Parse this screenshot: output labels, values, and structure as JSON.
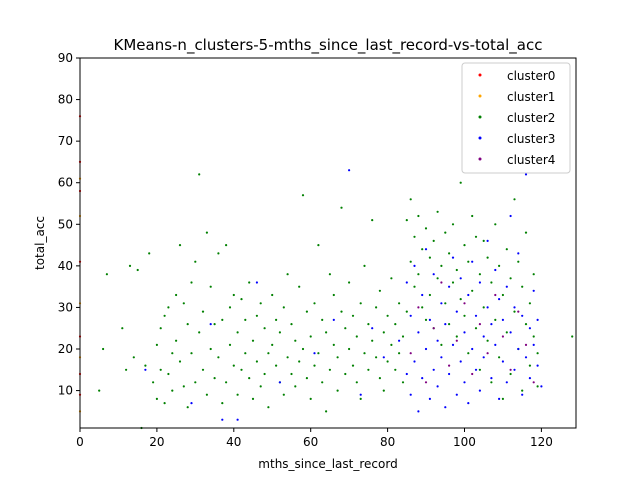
{
  "chart_data": {
    "type": "scatter",
    "title": "KMeans-n_clusters-5-mths_since_last_record-vs-total_acc",
    "xlabel": "mths_since_last_record",
    "ylabel": "total_acc",
    "xlim": [
      0,
      129
    ],
    "ylim": [
      1,
      90
    ],
    "xticks": [
      0,
      20,
      40,
      60,
      80,
      100,
      120
    ],
    "yticks": [
      10,
      20,
      30,
      40,
      50,
      60,
      70,
      80,
      90
    ],
    "grid": false,
    "legend_position": "top-right",
    "series": [
      {
        "name": "cluster0",
        "color": "#ff0000",
        "points": [
          [
            0,
            9
          ],
          [
            0,
            14
          ],
          [
            0,
            23
          ],
          [
            0,
            41
          ],
          [
            0,
            58
          ],
          [
            0,
            65
          ],
          [
            0,
            76
          ]
        ]
      },
      {
        "name": "cluster1",
        "color": "#ffa500",
        "points": [
          [
            0,
            5
          ],
          [
            0,
            18
          ],
          [
            0,
            31
          ],
          [
            0,
            52
          ],
          [
            0,
            61
          ]
        ]
      },
      {
        "name": "cluster2",
        "color": "#008000",
        "points": [
          [
            5,
            10
          ],
          [
            6,
            20
          ],
          [
            7,
            38
          ],
          [
            11,
            25
          ],
          [
            12,
            15
          ],
          [
            13,
            40
          ],
          [
            14,
            18
          ],
          [
            15,
            39
          ],
          [
            16,
            1
          ],
          [
            17,
            16
          ],
          [
            18,
            43
          ],
          [
            19,
            12
          ],
          [
            20,
            21
          ],
          [
            20,
            8
          ],
          [
            21,
            25
          ],
          [
            21,
            15
          ],
          [
            22,
            28
          ],
          [
            22,
            7
          ],
          [
            23,
            30
          ],
          [
            23,
            14
          ],
          [
            24,
            19
          ],
          [
            24,
            10
          ],
          [
            25,
            33
          ],
          [
            25,
            22
          ],
          [
            26,
            45
          ],
          [
            26,
            17
          ],
          [
            27,
            11
          ],
          [
            27,
            31
          ],
          [
            28,
            26
          ],
          [
            28,
            6
          ],
          [
            29,
            19
          ],
          [
            29,
            36
          ],
          [
            30,
            41
          ],
          [
            30,
            12
          ],
          [
            31,
            62
          ],
          [
            31,
            24
          ],
          [
            32,
            29
          ],
          [
            32,
            15
          ],
          [
            33,
            48
          ],
          [
            33,
            9
          ],
          [
            34,
            20
          ],
          [
            34,
            35
          ],
          [
            35,
            26
          ],
          [
            35,
            13
          ],
          [
            36,
            18
          ],
          [
            36,
            43
          ],
          [
            37,
            27
          ],
          [
            37,
            7
          ],
          [
            38,
            12
          ],
          [
            38,
            45
          ],
          [
            39,
            21
          ],
          [
            39,
            30
          ],
          [
            40,
            16
          ],
          [
            40,
            33
          ],
          [
            41,
            24
          ],
          [
            41,
            9
          ],
          [
            42,
            32
          ],
          [
            42,
            15
          ],
          [
            43,
            19
          ],
          [
            43,
            27
          ],
          [
            44,
            13
          ],
          [
            44,
            36
          ],
          [
            45,
            22
          ],
          [
            45,
            8
          ],
          [
            46,
            28
          ],
          [
            46,
            17
          ],
          [
            47,
            11
          ],
          [
            47,
            31
          ],
          [
            48,
            25
          ],
          [
            48,
            14
          ],
          [
            49,
            19
          ],
          [
            49,
            6
          ],
          [
            50,
            21
          ],
          [
            50,
            33
          ],
          [
            51,
            16
          ],
          [
            51,
            27
          ],
          [
            52,
            12
          ],
          [
            52,
            24
          ],
          [
            53,
            30
          ],
          [
            53,
            9
          ],
          [
            54,
            18
          ],
          [
            54,
            38
          ],
          [
            55,
            14
          ],
          [
            55,
            26
          ],
          [
            56,
            22
          ],
          [
            56,
            11
          ],
          [
            57,
            35
          ],
          [
            57,
            17
          ],
          [
            58,
            57
          ],
          [
            58,
            20
          ],
          [
            59,
            13
          ],
          [
            59,
            29
          ],
          [
            60,
            23
          ],
          [
            60,
            8
          ],
          [
            61,
            31
          ],
          [
            61,
            16
          ],
          [
            62,
            45
          ],
          [
            62,
            19
          ],
          [
            63,
            12
          ],
          [
            63,
            27
          ],
          [
            64,
            24
          ],
          [
            64,
            5
          ],
          [
            65,
            38
          ],
          [
            65,
            15
          ],
          [
            66,
            21
          ],
          [
            66,
            33
          ],
          [
            67,
            18
          ],
          [
            67,
            10
          ],
          [
            68,
            29
          ],
          [
            68,
            54
          ],
          [
            69,
            14
          ],
          [
            69,
            25
          ],
          [
            70,
            20
          ],
          [
            70,
            36
          ],
          [
            71,
            16
          ],
          [
            71,
            28
          ],
          [
            72,
            12
          ],
          [
            72,
            23
          ],
          [
            73,
            31
          ],
          [
            73,
            8
          ],
          [
            74,
            19
          ],
          [
            74,
            40
          ],
          [
            75,
            26
          ],
          [
            75,
            15
          ],
          [
            76,
            22
          ],
          [
            76,
            51
          ],
          [
            77,
            18
          ],
          [
            77,
            30
          ],
          [
            78,
            13
          ],
          [
            78,
            34
          ],
          [
            79,
            24
          ],
          [
            79,
            10
          ],
          [
            80,
            28
          ],
          [
            80,
            17
          ],
          [
            81,
            21
          ],
          [
            81,
            37
          ],
          [
            82,
            15
          ],
          [
            82,
            26
          ],
          [
            83,
            19
          ],
          [
            83,
            31
          ],
          [
            84,
            23
          ],
          [
            84,
            12
          ],
          [
            85,
            51
          ],
          [
            85,
            29
          ],
          [
            86,
            56
          ],
          [
            86,
            41
          ],
          [
            87,
            47
          ],
          [
            87,
            35
          ],
          [
            88,
            38
          ],
          [
            88,
            52
          ],
          [
            89,
            44
          ],
          [
            89,
            30
          ],
          [
            90,
            49
          ],
          [
            90,
            27
          ],
          [
            91,
            42
          ],
          [
            91,
            33
          ],
          [
            92,
            46
          ],
          [
            92,
            25
          ],
          [
            93,
            53
          ],
          [
            93,
            37
          ],
          [
            94,
            40
          ],
          [
            94,
            21
          ],
          [
            95,
            48
          ],
          [
            95,
            31
          ],
          [
            96,
            43
          ],
          [
            96,
            26
          ],
          [
            97,
            50
          ],
          [
            97,
            36
          ],
          [
            98,
            39
          ],
          [
            98,
            23
          ],
          [
            99,
            60
          ],
          [
            99,
            32
          ],
          [
            100,
            45
          ],
          [
            100,
            28
          ],
          [
            101,
            41
          ],
          [
            101,
            19
          ],
          [
            102,
            52
          ],
          [
            102,
            34
          ],
          [
            103,
            47
          ],
          [
            103,
            25
          ],
          [
            104,
            38
          ],
          [
            104,
            15
          ],
          [
            105,
            46
          ],
          [
            105,
            30
          ],
          [
            106,
            42
          ],
          [
            106,
            22
          ],
          [
            107,
            36
          ],
          [
            107,
            12
          ],
          [
            108,
            50
          ],
          [
            108,
            27
          ],
          [
            109,
            40
          ],
          [
            109,
            18
          ],
          [
            110,
            33
          ],
          [
            110,
            8
          ],
          [
            111,
            44
          ],
          [
            111,
            24
          ],
          [
            112,
            37
          ],
          [
            112,
            14
          ],
          [
            113,
            56
          ],
          [
            113,
            29
          ],
          [
            114,
            41
          ],
          [
            114,
            20
          ],
          [
            115,
            35
          ],
          [
            115,
            10
          ],
          [
            116,
            48
          ],
          [
            116,
            26
          ],
          [
            117,
            31
          ],
          [
            117,
            16
          ],
          [
            118,
            23
          ],
          [
            118,
            38
          ],
          [
            119,
            19
          ],
          [
            119,
            11
          ],
          [
            128,
            23
          ]
        ]
      },
      {
        "name": "cluster3",
        "color": "#0000ff",
        "points": [
          [
            17,
            15
          ],
          [
            29,
            7
          ],
          [
            34,
            26
          ],
          [
            37,
            3
          ],
          [
            41,
            3
          ],
          [
            46,
            36
          ],
          [
            52,
            12
          ],
          [
            61,
            19
          ],
          [
            66,
            27
          ],
          [
            70,
            63
          ],
          [
            73,
            9
          ],
          [
            76,
            25
          ],
          [
            79,
            18
          ],
          [
            83,
            22
          ],
          [
            85,
            14
          ],
          [
            85,
            36
          ],
          [
            86,
            9
          ],
          [
            86,
            28
          ],
          [
            87,
            17
          ],
          [
            87,
            40
          ],
          [
            88,
            5
          ],
          [
            88,
            24
          ],
          [
            89,
            13
          ],
          [
            89,
            33
          ],
          [
            90,
            20
          ],
          [
            90,
            44
          ],
          [
            91,
            8
          ],
          [
            91,
            27
          ],
          [
            92,
            15
          ],
          [
            92,
            38
          ],
          [
            93,
            22
          ],
          [
            93,
            11
          ],
          [
            94,
            31
          ],
          [
            94,
            18
          ],
          [
            95,
            26
          ],
          [
            95,
            6
          ],
          [
            96,
            35
          ],
          [
            96,
            14
          ],
          [
            97,
            21
          ],
          [
            97,
            42
          ],
          [
            98,
            9
          ],
          [
            98,
            29
          ],
          [
            99,
            17
          ],
          [
            99,
            37
          ],
          [
            100,
            12
          ],
          [
            100,
            24
          ],
          [
            101,
            33
          ],
          [
            101,
            7
          ],
          [
            102,
            20
          ],
          [
            102,
            41
          ],
          [
            103,
            15
          ],
          [
            103,
            28
          ],
          [
            104,
            10
          ],
          [
            104,
            36
          ],
          [
            105,
            23
          ],
          [
            105,
            18
          ],
          [
            106,
            30
          ],
          [
            106,
            46
          ],
          [
            107,
            13
          ],
          [
            107,
            26
          ],
          [
            108,
            21
          ],
          [
            108,
            39
          ],
          [
            109,
            8
          ],
          [
            109,
            32
          ],
          [
            110,
            17
          ],
          [
            110,
            27
          ],
          [
            111,
            12
          ],
          [
            111,
            35
          ],
          [
            112,
            24
          ],
          [
            112,
            52
          ],
          [
            113,
            15
          ],
          [
            113,
            30
          ],
          [
            114,
            20
          ],
          [
            114,
            43
          ],
          [
            115,
            9
          ],
          [
            115,
            28
          ],
          [
            116,
            18
          ],
          [
            116,
            62
          ],
          [
            117,
            25
          ],
          [
            117,
            13
          ],
          [
            118,
            34
          ],
          [
            118,
            21
          ],
          [
            119,
            16
          ],
          [
            119,
            27
          ],
          [
            120,
            11
          ]
        ]
      },
      {
        "name": "cluster4",
        "color": "#800080",
        "points": [
          [
            86,
            19
          ],
          [
            88,
            30
          ],
          [
            90,
            12
          ],
          [
            92,
            25
          ],
          [
            94,
            36
          ],
          [
            96,
            16
          ],
          [
            98,
            22
          ],
          [
            100,
            31
          ],
          [
            102,
            14
          ],
          [
            104,
            26
          ],
          [
            106,
            19
          ],
          [
            108,
            33
          ],
          [
            110,
            23
          ],
          [
            112,
            15
          ],
          [
            114,
            29
          ],
          [
            116,
            21
          ],
          [
            118,
            12
          ]
        ]
      }
    ]
  }
}
